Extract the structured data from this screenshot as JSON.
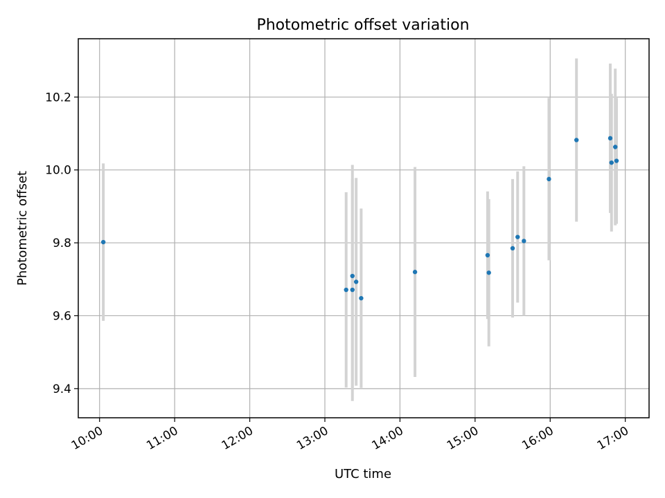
{
  "chart_data": {
    "type": "scatter",
    "title": "Photometric offset variation",
    "xlabel": "UTC time",
    "ylabel": "Photometric offset",
    "x_unit": "UTC time (HH:MM)",
    "xlim": [
      "09:43",
      "17:19"
    ],
    "ylim": [
      9.32,
      10.36
    ],
    "x_ticks": [
      "10:00",
      "11:00",
      "12:00",
      "13:00",
      "14:00",
      "15:00",
      "16:00",
      "17:00"
    ],
    "y_ticks": [
      9.4,
      9.6,
      9.8,
      10.0,
      10.2
    ],
    "y_tick_labels": [
      "9.4",
      "9.6",
      "9.8",
      "10.0",
      "10.2"
    ],
    "grid": true,
    "marker_color": "#1f77b4",
    "errorbar_color": "#d3d3d3",
    "series": [
      {
        "points": [
          {
            "t": "10:03",
            "y": 9.802,
            "err": 0.216
          },
          {
            "t": "13:17",
            "y": 9.671,
            "err": 0.268
          },
          {
            "t": "13:22",
            "y": 9.709,
            "err": 0.305
          },
          {
            "t": "13:22",
            "y": 9.671,
            "err": 0.305
          },
          {
            "t": "13:25",
            "y": 9.693,
            "err": 0.285
          },
          {
            "t": "13:29",
            "y": 9.648,
            "err": 0.246
          },
          {
            "t": "14:12",
            "y": 9.72,
            "err": 0.288
          },
          {
            "t": "15:10",
            "y": 9.766,
            "err": 0.175
          },
          {
            "t": "15:11",
            "y": 9.718,
            "err": 0.202
          },
          {
            "t": "15:30",
            "y": 9.785,
            "err": 0.19
          },
          {
            "t": "15:34",
            "y": 9.816,
            "err": 0.18
          },
          {
            "t": "15:39",
            "y": 9.805,
            "err": 0.205
          },
          {
            "t": "15:59",
            "y": 9.975,
            "err": 0.223
          },
          {
            "t": "16:21",
            "y": 10.082,
            "err": 0.224
          },
          {
            "t": "16:48",
            "y": 10.087,
            "err": 0.205
          },
          {
            "t": "16:49",
            "y": 10.02,
            "err": 0.189
          },
          {
            "t": "16:52",
            "y": 10.063,
            "err": 0.215
          },
          {
            "t": "16:53",
            "y": 10.025,
            "err": 0.173
          }
        ]
      }
    ]
  }
}
